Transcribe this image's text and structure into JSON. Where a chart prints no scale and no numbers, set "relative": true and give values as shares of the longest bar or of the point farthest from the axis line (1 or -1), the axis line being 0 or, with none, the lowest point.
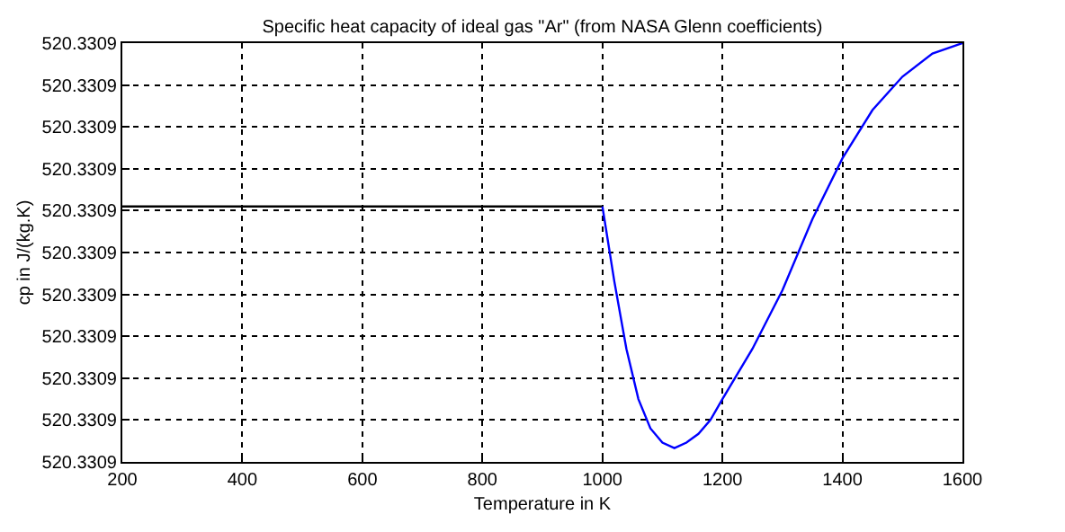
{
  "chart_data": {
    "type": "line",
    "title": "Specific heat capacity of ideal gas \"Ar\" (from NASA Glenn coefficients)",
    "xlabel": "Temperature in K",
    "ylabel": "cp in J/(kg.K)",
    "xlim": [
      200,
      1600
    ],
    "xticks": [
      200,
      400,
      600,
      800,
      1000,
      1200,
      1400,
      1600
    ],
    "relative": true,
    "annotations": [
      "520.3309",
      "520.3309",
      "520.3309",
      "520.3309",
      "520.3309",
      "520.3309",
      "520.3309",
      "520.3309",
      "520.3309",
      "520.3309",
      "520.3309"
    ],
    "grid": true,
    "line_style": "solid",
    "series": [
      {
        "color": "#000000",
        "x": [
          200,
          1000
        ],
        "values": [
          0.61,
          0.61
        ]
      },
      {
        "color": "#0000ff",
        "x": [
          1000,
          1020,
          1040,
          1060,
          1080,
          1100,
          1120,
          1140,
          1160,
          1180,
          1200,
          1250,
          1300,
          1350,
          1400,
          1450,
          1500,
          1550,
          1600
        ],
        "values": [
          0.61,
          0.43,
          0.27,
          0.15,
          0.08,
          0.046,
          0.033,
          0.046,
          0.067,
          0.1,
          0.15,
          0.27,
          0.41,
          0.58,
          0.725,
          0.84,
          0.92,
          0.975,
          1.0
        ]
      }
    ]
  }
}
